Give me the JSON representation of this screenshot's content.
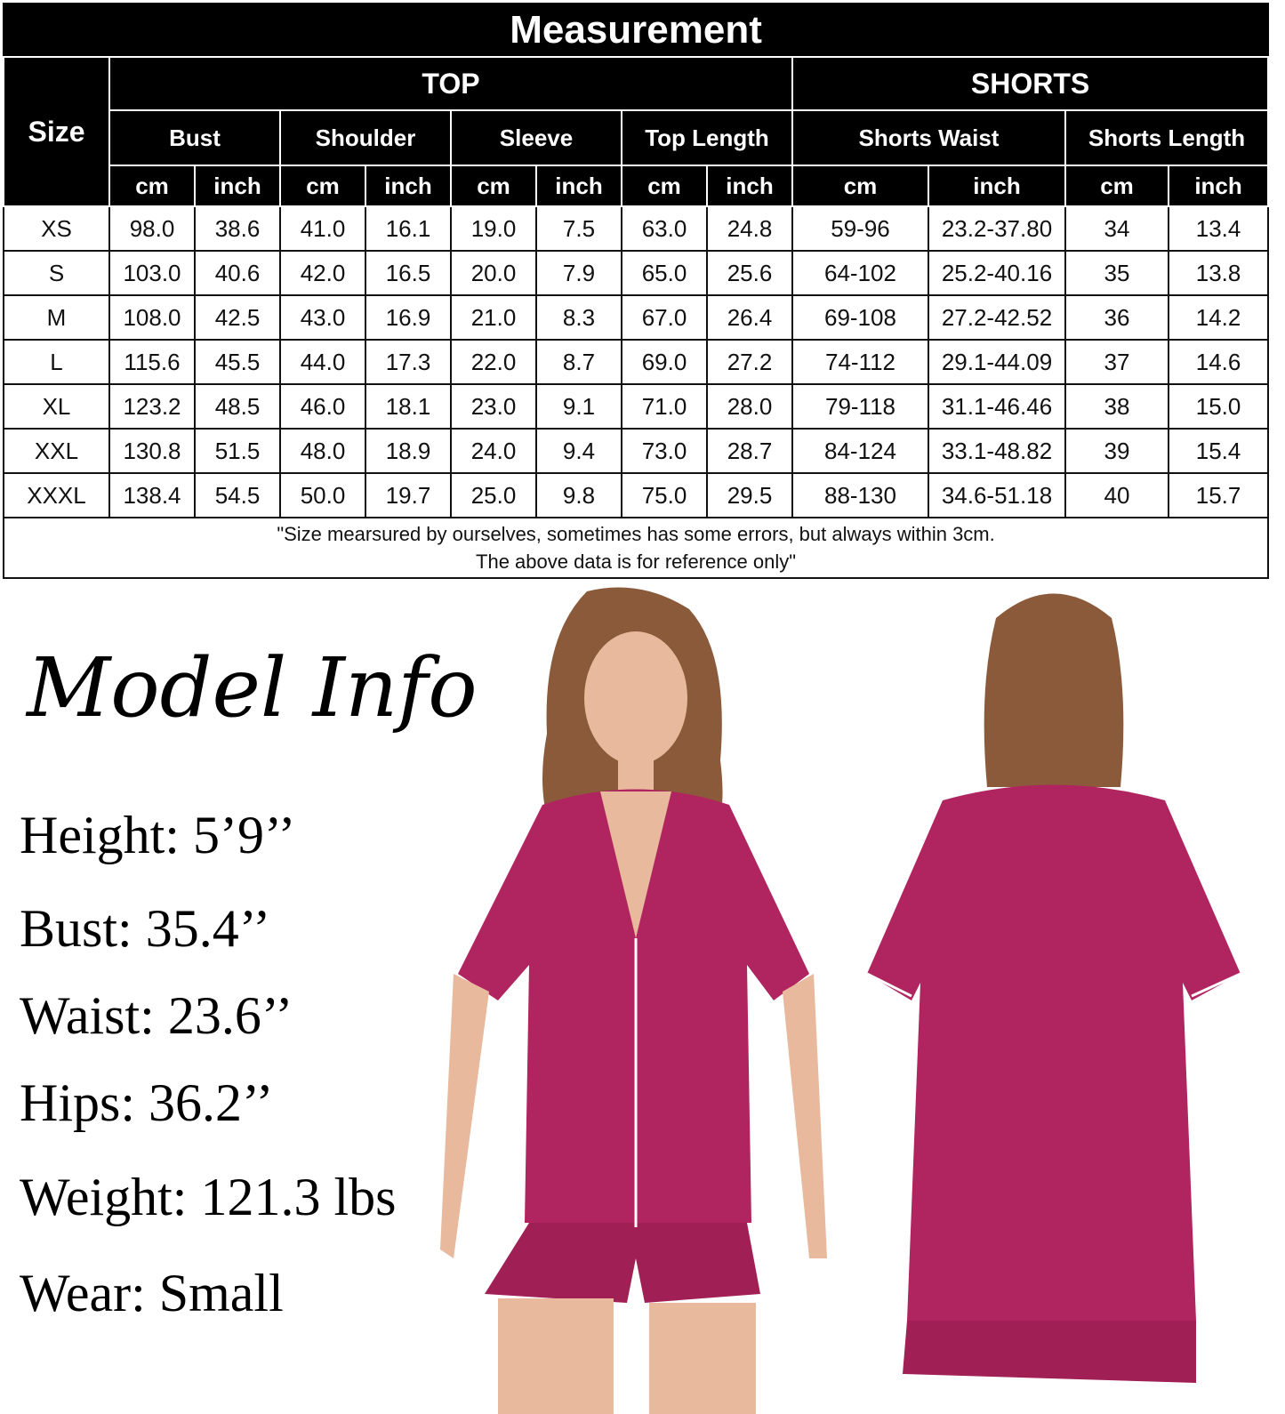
{
  "title": "Measurement",
  "size_header": "Size",
  "groups": {
    "top": "TOP",
    "shorts": "SHORTS"
  },
  "measures": [
    "Bust",
    "Shoulder",
    "Sleeve",
    "Top Length",
    "Shorts Waist",
    "Shorts Length"
  ],
  "units": [
    "cm",
    "inch",
    "cm",
    "inch",
    "cm",
    "inch",
    "cm",
    "inch",
    "cm",
    "inch",
    "cm",
    "inch"
  ],
  "rows": [
    [
      "XS",
      "98.0",
      "38.6",
      "41.0",
      "16.1",
      "19.0",
      "7.5",
      "63.0",
      "24.8",
      "59-96",
      "23.2-37.80",
      "34",
      "13.4"
    ],
    [
      "S",
      "103.0",
      "40.6",
      "42.0",
      "16.5",
      "20.0",
      "7.9",
      "65.0",
      "25.6",
      "64-102",
      "25.2-40.16",
      "35",
      "13.8"
    ],
    [
      "M",
      "108.0",
      "42.5",
      "43.0",
      "16.9",
      "21.0",
      "8.3",
      "67.0",
      "26.4",
      "69-108",
      "27.2-42.52",
      "36",
      "14.2"
    ],
    [
      "L",
      "115.6",
      "45.5",
      "44.0",
      "17.3",
      "22.0",
      "8.7",
      "69.0",
      "27.2",
      "74-112",
      "29.1-44.09",
      "37",
      "14.6"
    ],
    [
      "XL",
      "123.2",
      "48.5",
      "46.0",
      "18.1",
      "23.0",
      "9.1",
      "71.0",
      "28.0",
      "79-118",
      "31.1-46.46",
      "38",
      "15.0"
    ],
    [
      "XXL",
      "130.8",
      "51.5",
      "48.0",
      "18.9",
      "24.0",
      "9.4",
      "73.0",
      "28.7",
      "84-124",
      "33.1-48.82",
      "39",
      "15.4"
    ],
    [
      "XXXL",
      "138.4",
      "54.5",
      "50.0",
      "19.7",
      "25.0",
      "9.8",
      "75.0",
      "29.5",
      "88-130",
      "34.6-51.18",
      "40",
      "15.7"
    ]
  ],
  "note": [
    "\"Size mearsured by ourselves, sometimes has some errors, but always within 3cm.",
    "The above data is  for reference only\""
  ],
  "model_info": {
    "title": "Model Info",
    "stats": [
      "Height: 5’9’’",
      "Bust: 35.4’’",
      "Waist: 23.6’’",
      "Hips: 36.2’’",
      "Weight: 121.3 lbs",
      "Wear: Small"
    ]
  },
  "colors": {
    "header_bg": "#000000",
    "pajama": "#b0255f",
    "piping": "#ffffff"
  }
}
